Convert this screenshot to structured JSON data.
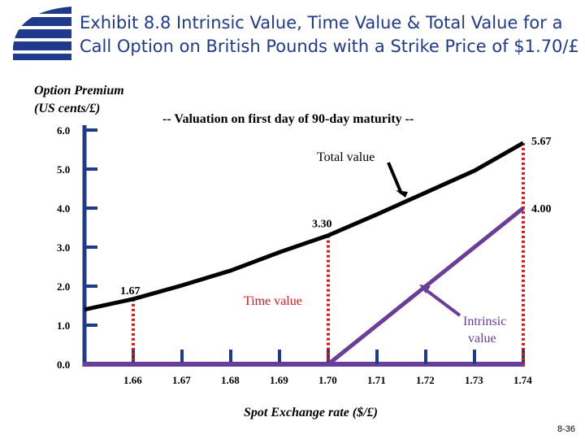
{
  "slide": {
    "title_line1": "Exhibit 8.8  Intrinsic Value, Time Value & Total Value for a",
    "title_line2": "Call Option on British Pounds with a Strike Price of $1.70/£",
    "page_number": "8-36",
    "accent_color": "#1f3a8a"
  },
  "chart_data": {
    "type": "line",
    "subtitle": "-- Valuation on first day of 90-day maturity --",
    "ylabel_line1": "Option Premium",
    "ylabel_line2": "(US cents/£)",
    "xlabel": "Spot Exchange rate ($/£)",
    "xlim": [
      1.65,
      1.74
    ],
    "ylim": [
      0,
      6
    ],
    "y_ticks": [
      0,
      1,
      2,
      3,
      4,
      5,
      6
    ],
    "y_tick_labels": [
      "0.0",
      "1.0",
      "2.0",
      "3.0",
      "4.0",
      "5.0",
      "6.0"
    ],
    "x_ticks": [
      1.66,
      1.67,
      1.68,
      1.69,
      1.7,
      1.71,
      1.72,
      1.73,
      1.74
    ],
    "x_tick_labels": [
      "1.66",
      "1.67",
      "1.68",
      "1.69",
      "1.70",
      "1.71",
      "1.72",
      "1.73",
      "1.74"
    ],
    "series": [
      {
        "name": "Total value",
        "color": "#000000",
        "x": [
          1.65,
          1.66,
          1.67,
          1.68,
          1.69,
          1.7,
          1.71,
          1.72,
          1.73,
          1.74
        ],
        "y": [
          1.4,
          1.67,
          2.02,
          2.4,
          2.87,
          3.3,
          3.84,
          4.4,
          4.96,
          5.67
        ]
      },
      {
        "name": "Intrinsic value",
        "color": "#6a3d9a",
        "x": [
          1.65,
          1.7,
          1.74
        ],
        "y": [
          0,
          0,
          4.0
        ]
      }
    ],
    "dotted_guides": [
      {
        "x": 1.66,
        "y": 1.67,
        "color": "#d7191c"
      },
      {
        "x": 1.7,
        "y": 3.3,
        "color": "#d7191c"
      },
      {
        "x": 1.74,
        "y": 5.67,
        "color": "#d7191c"
      }
    ],
    "data_labels": [
      {
        "text": "1.67",
        "x": 1.66,
        "y": 1.67
      },
      {
        "text": "3.30",
        "x": 1.7,
        "y": 3.3
      },
      {
        "text": "5.67",
        "x": 1.74,
        "y": 5.67
      },
      {
        "text": "4.00",
        "x": 1.74,
        "y": 4.0
      }
    ],
    "annotations": [
      {
        "text": "Total value",
        "color": "#000000"
      },
      {
        "text": "Time value",
        "color": "#d7191c"
      },
      {
        "text_line1": "Intrinsic",
        "text_line2": "value",
        "color": "#6a3d9a"
      }
    ]
  }
}
